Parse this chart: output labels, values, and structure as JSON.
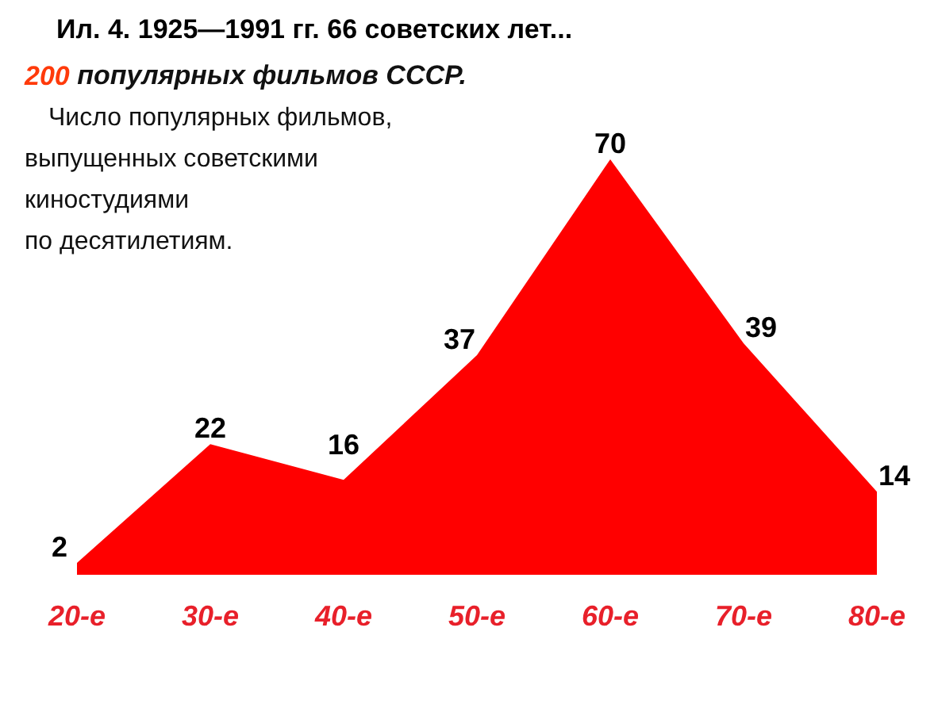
{
  "chart_data": {
    "type": "area",
    "title": "Ил. 4. 1925—1991 гг. 66 советских лет...",
    "subtitle": "200 популярных фильмов СССР.",
    "annotations": [
      "Число популярных фильмов,\nвыпущенных советскими\nкиностудиями\nпо десятилетиям."
    ],
    "categories": [
      "20-е",
      "30-е",
      "40-е",
      "50-е",
      "60-е",
      "70-е",
      "80-е"
    ],
    "series": [
      {
        "color": "#ff0000",
        "values": [
          2,
          22,
          16,
          37,
          70,
          39,
          14
        ]
      }
    ],
    "data_labels": true
  }
}
